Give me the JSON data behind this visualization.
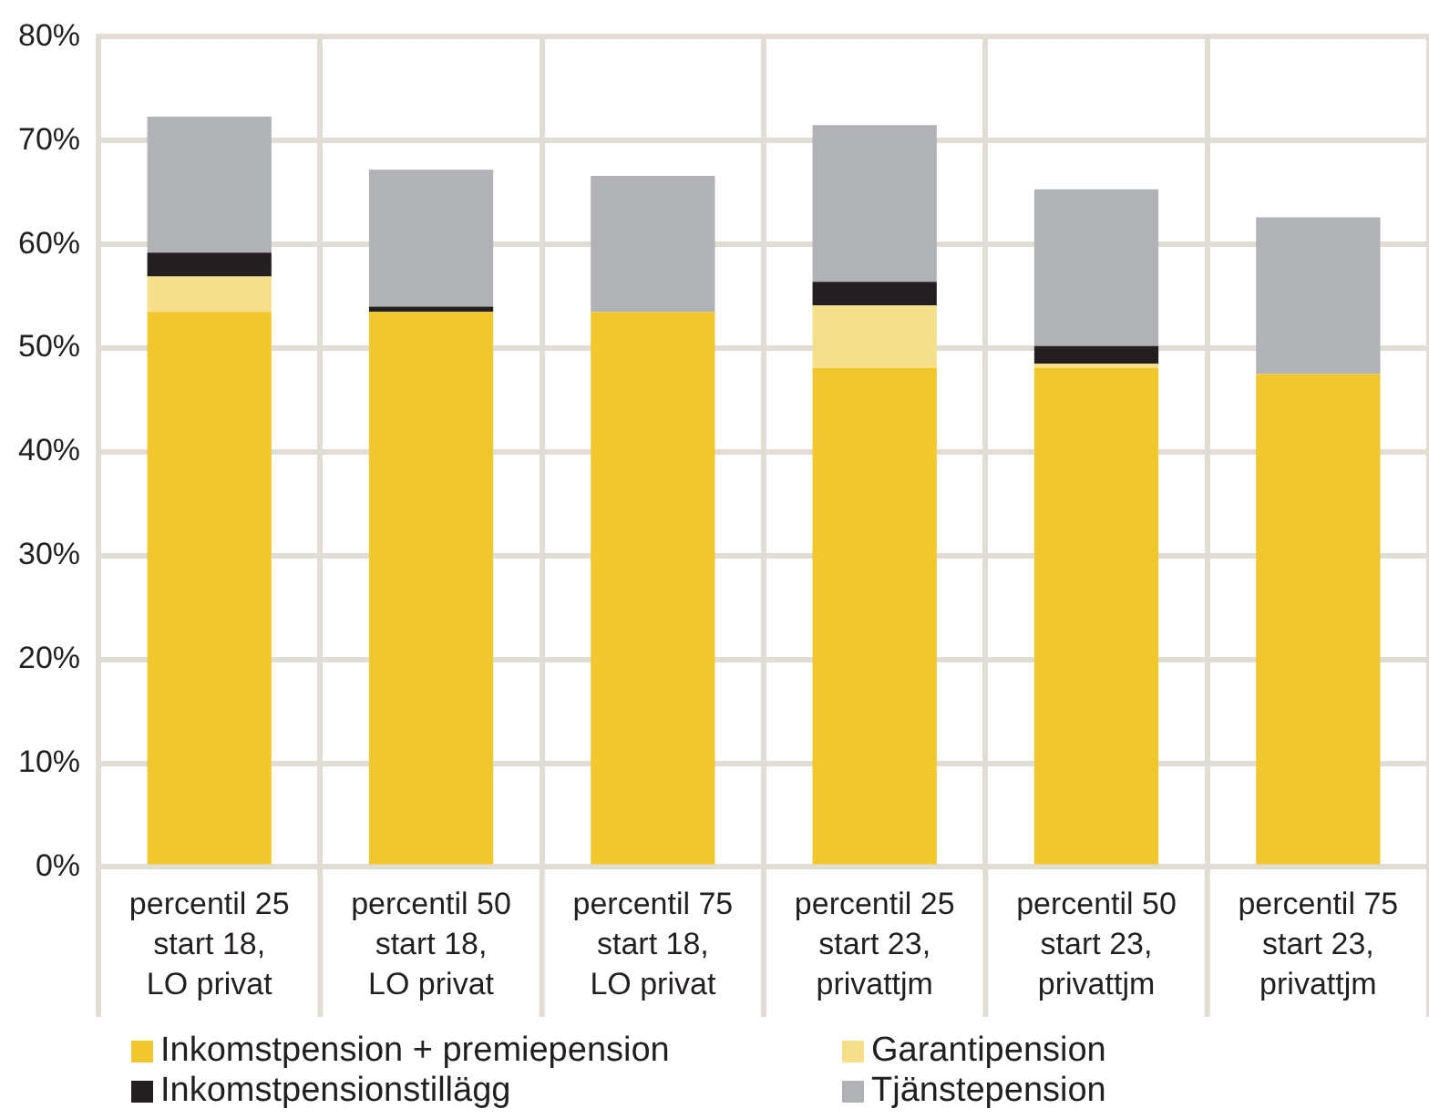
{
  "chart_data": {
    "type": "bar",
    "stacked": true,
    "categories": [
      "percentil 25\nstart 18,\nLO privat",
      "percentil 50\nstart 18,\nLO privat",
      "percentil 75\nstart 18,\nLO privat",
      "percentil 25\nstart 23,\nprivattjm",
      "percentil 50\nstart 23,\nprivattjm",
      "percentil 75\nstart 23,\nprivattjm"
    ],
    "series": [
      {
        "name": "Inkomstpension + premiepension",
        "color": "#f2c72e",
        "values": [
          53.5,
          53.5,
          53.5,
          48.1,
          48.1,
          47.5
        ]
      },
      {
        "name": "Garantipension",
        "color": "#f6df8a",
        "values": [
          3.4,
          0,
          0,
          6.0,
          0.4,
          0
        ]
      },
      {
        "name": "Inkomstpensionstillägg",
        "color": "#231f20",
        "values": [
          2.3,
          0.5,
          0,
          2.3,
          1.7,
          0
        ]
      },
      {
        "name": "Tjänstepension",
        "color": "#b1b2b5",
        "values": [
          13.1,
          13.2,
          13.1,
          15.1,
          15.1,
          15.1
        ]
      }
    ],
    "ylim": [
      0,
      80
    ],
    "yticks": [
      {
        "value": 0,
        "label": "0%"
      },
      {
        "value": 10,
        "label": "10%"
      },
      {
        "value": 20,
        "label": "20%"
      },
      {
        "value": 30,
        "label": "30%"
      },
      {
        "value": 40,
        "label": "40%"
      },
      {
        "value": 50,
        "label": "50%"
      },
      {
        "value": 60,
        "label": "60%"
      },
      {
        "value": 70,
        "label": "70%"
      },
      {
        "value": 80,
        "label": "80%"
      }
    ],
    "grid": true,
    "legend": "bottom"
  }
}
